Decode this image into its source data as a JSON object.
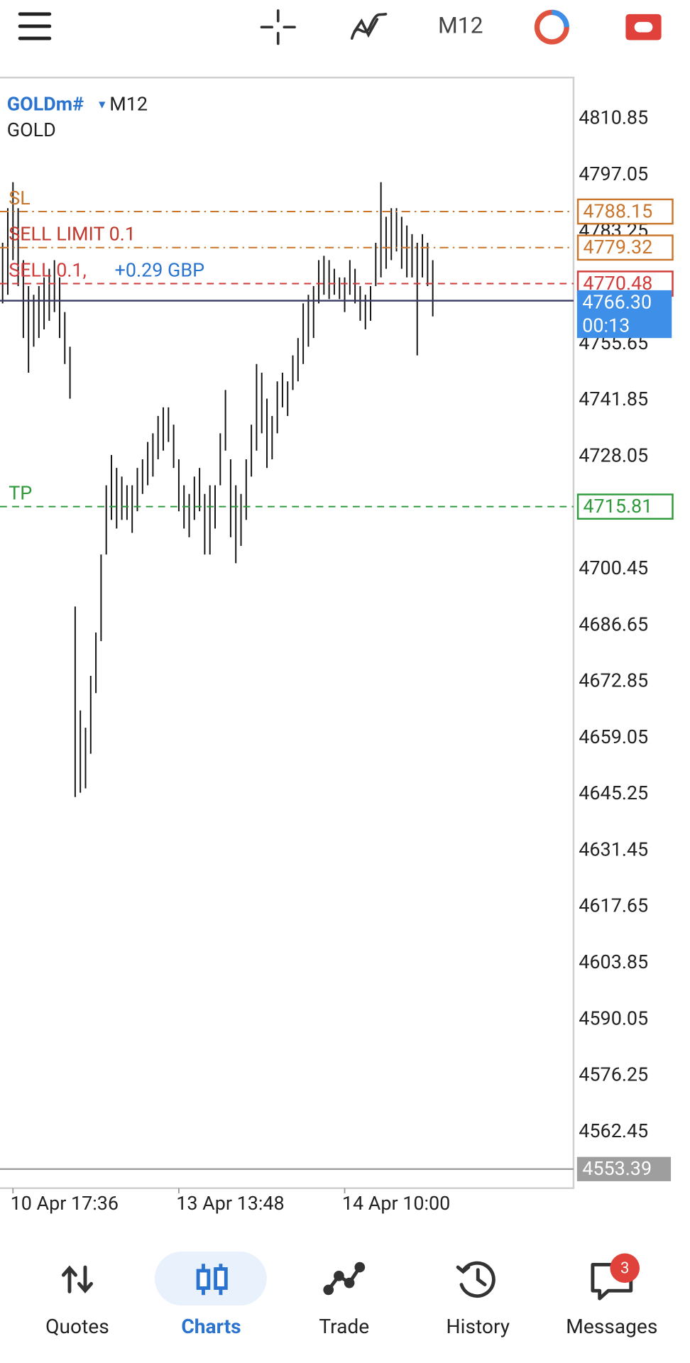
{
  "toolbar": {
    "timeframe": "M12"
  },
  "chart_data": {
    "type": "ohlc",
    "symbol": "GOLDm#",
    "timeframe": "M12",
    "description": "GOLD",
    "color": "#111111",
    "categories": [
      null,
      null,
      "10 Apr 17:36",
      null,
      null,
      null,
      null,
      null,
      null,
      null,
      null,
      null,
      null,
      null,
      null,
      null,
      null,
      null,
      null,
      null,
      null,
      null,
      null,
      null,
      null,
      null,
      null,
      null,
      null,
      null,
      null,
      null,
      null,
      null,
      "13 Apr 13:48",
      null,
      null,
      null,
      null,
      null,
      null,
      null,
      null,
      null,
      null,
      null,
      null,
      null,
      null,
      null,
      null,
      null,
      null,
      null,
      null,
      null,
      null,
      null,
      null,
      null,
      null,
      null,
      null,
      null,
      null,
      null,
      "14 Apr 10:00",
      null,
      null,
      null,
      null,
      null,
      null,
      null,
      null,
      null,
      null,
      null,
      null,
      null,
      null,
      null,
      null,
      null
    ],
    "high": [
      4780.49,
      4788.98,
      4795.35,
      4788.98,
      4776.24,
      4769.87,
      4767.75,
      4769.87,
      4772.0,
      4774.12,
      4776.24,
      4772.0,
      4763.5,
      4755.01,
      4691.32,
      4665.84,
      4661.59,
      4674.33,
      4684.95,
      4704.06,
      4721.04,
      4728.47,
      4725.29,
      4723.17,
      4721.04,
      4721.04,
      4725.29,
      4727.41,
      4731.66,
      4733.78,
      4738.03,
      4740.15,
      4740.15,
      4735.9,
      4727.41,
      4721.04,
      4718.92,
      4723.17,
      4725.29,
      4718.92,
      4721.04,
      4721.04,
      4733.78,
      4744.4,
      4727.41,
      4721.04,
      4718.92,
      4727.41,
      4735.9,
      4750.77,
      4748.64,
      4742.27,
      4738.03,
      4746.52,
      4748.64,
      4746.52,
      4752.89,
      4757.14,
      4765.63,
      4767.75,
      4769.87,
      4776.24,
      4777.3,
      4776.24,
      4774.12,
      4772.0,
      4772.0,
      4776.24,
      4774.12,
      4769.87,
      4767.75,
      4769.87,
      4780.49,
      4795.35,
      4786.86,
      4788.98,
      4788.98,
      4786.86,
      4784.74,
      4782.61,
      4780.49,
      4782.61,
      4780.49,
      4776.24
    ],
    "low": [
      4765.63,
      4767.75,
      4776.24,
      4769.87,
      4757.14,
      4748.64,
      4755.01,
      4757.14,
      4759.26,
      4761.38,
      4763.5,
      4757.14,
      4750.77,
      4742.27,
      4644.61,
      4645.67,
      4646.73,
      4655.23,
      4670.09,
      4682.83,
      4704.06,
      4712.55,
      4710.43,
      4712.55,
      4712.55,
      4709.37,
      4714.67,
      4718.92,
      4721.04,
      4723.17,
      4727.41,
      4729.54,
      4731.66,
      4725.29,
      4714.67,
      4710.43,
      4708.3,
      4712.55,
      4714.67,
      4704.06,
      4704.06,
      4710.43,
      4721.04,
      4729.54,
      4708.3,
      4701.93,
      4706.18,
      4712.55,
      4723.17,
      4729.54,
      4733.78,
      4725.29,
      4727.41,
      4733.78,
      4740.15,
      4738.03,
      4744.4,
      4746.52,
      4750.77,
      4755.01,
      4757.14,
      4765.63,
      4767.75,
      4766.69,
      4767.75,
      4766.69,
      4763.5,
      4767.75,
      4765.63,
      4761.38,
      4759.26,
      4761.38,
      4769.87,
      4772.0,
      4774.12,
      4776.24,
      4778.37,
      4774.12,
      4772.0,
      4772.0,
      4752.89,
      4772.0,
      4769.87,
      4762.44
    ],
    "ylim": [
      4553.4,
      4820.8
    ],
    "yticks": [
      4810.85,
      4797.05,
      4783.25,
      4755.65,
      4741.85,
      4728.05,
      4700.45,
      4686.65,
      4672.85,
      4659.05,
      4645.25,
      4631.45,
      4617.65,
      4603.85,
      4590.05,
      4576.25,
      4562.45
    ],
    "levels": [
      {
        "label": "SL",
        "value": 4788.15,
        "color": "#c9752c",
        "dash": "dashdot"
      },
      {
        "label": "SELL LIMIT 0.1",
        "value": 4779.32,
        "color": "#c9752c",
        "text_color": "#c0392b",
        "dash": "dashdot"
      },
      {
        "label": "SELL 0.1,",
        "profit": "+0.29 GBP",
        "value": 4770.48,
        "color": "#d23b3b",
        "dash": "dashed"
      },
      {
        "label": "TP",
        "value": 4715.81,
        "color": "#2f9a3c",
        "dash": "dashed"
      }
    ],
    "bid": {
      "value": {
        "value": 4766.3,
        "label": "4766.30"
      },
      "countdown": "00:13",
      "color": "#3d8fe8",
      "line_color": "#3a3a66"
    },
    "chart_low": {
      "value": 4553.39,
      "color": "#9e9e9e"
    }
  },
  "nav": {
    "items": [
      "Quotes",
      "Charts",
      "Trade",
      "History",
      "Messages"
    ],
    "active": 1,
    "badge": 3
  }
}
